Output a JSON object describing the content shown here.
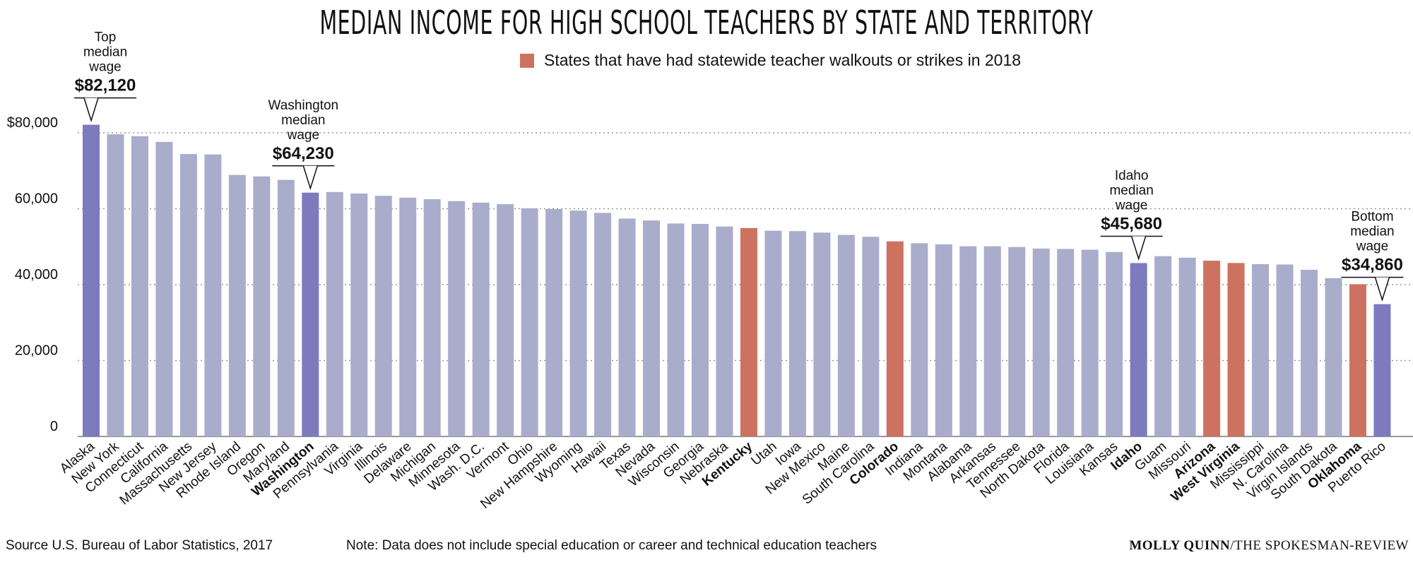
{
  "title": "MEDIAN INCOME FOR HIGH SCHOOL TEACHERS BY STATE AND TERRITORY",
  "legend": {
    "label": "States that have had statewide teacher walkouts or strikes in 2018",
    "color": "#cd7260"
  },
  "colors": {
    "default": "#aaaccb",
    "highlight": "#7d7bbd",
    "strike": "#cd7260",
    "axis": "#999999"
  },
  "footer": {
    "source": "Source U.S. Bureau of Labor Statistics, 2017",
    "note": "Note: Data does not include special education or career and technical education teachers",
    "credit_name": "MOLLY QUINN",
    "credit_org": "/THE SPOKESMAN-REVIEW"
  },
  "annotations": [
    {
      "category": "Alaska",
      "lines": [
        "Top",
        "median",
        "wage"
      ],
      "value": "$82,120"
    },
    {
      "category": "Washington",
      "lines": [
        "Washington",
        "median",
        "wage"
      ],
      "value": "$64,230"
    },
    {
      "category": "Idaho",
      "lines": [
        "Idaho",
        "median",
        "wage"
      ],
      "value": "$45,680"
    },
    {
      "category": "Puerto Rico",
      "lines": [
        "Bottom",
        "median",
        "wage"
      ],
      "value": "$34,860"
    }
  ],
  "chart_data": {
    "type": "bar",
    "ylim": [
      0,
      82120
    ],
    "yticks": [
      0,
      20000,
      40000,
      60000,
      80000
    ],
    "ytick_labels": [
      "0",
      "20,000",
      "40,000",
      "60,000",
      "$80,000"
    ],
    "grid": true,
    "legend_position": "top-center",
    "categories": [
      "Alaska",
      "New York",
      "Connecticut",
      "California",
      "Massachusetts",
      "New Jersey",
      "Rhode Island",
      "Oregon",
      "Maryland",
      "Washington",
      "Pennsylvania",
      "Virginia",
      "Illinois",
      "Delaware",
      "Michigan",
      "Minnesota",
      "Wash. D.C.",
      "Vermont",
      "Ohio",
      "New Hampshire",
      "Wyoming",
      "Hawaii",
      "Texas",
      "Nevada",
      "Wisconsin",
      "Georgia",
      "Nebraska",
      "Kentucky",
      "Utah",
      "Iowa",
      "New Mexico",
      "Maine",
      "South Carolina",
      "Colorado",
      "Indiana",
      "Montana",
      "Alabama",
      "Arkansas",
      "Tennessee",
      "North Dakota",
      "Florida",
      "Louisiana",
      "Kansas",
      "Idaho",
      "Guam",
      "Missouri",
      "Arizona",
      "West Virginia",
      "Mississippi",
      "N. Carolina",
      "Virgin Islands",
      "South Dakota",
      "Oklahoma",
      "Puerto Rico"
    ],
    "values": [
      82120,
      79600,
      79100,
      77600,
      74400,
      74300,
      68900,
      68500,
      67600,
      64230,
      64400,
      64000,
      63400,
      62900,
      62500,
      62000,
      61600,
      61200,
      60100,
      59900,
      59500,
      58900,
      57400,
      56900,
      56100,
      56000,
      55300,
      54900,
      54200,
      54100,
      53700,
      53100,
      52600,
      51400,
      50900,
      50600,
      50100,
      50100,
      49900,
      49500,
      49400,
      49200,
      48600,
      45680,
      47500,
      47100,
      46300,
      45700,
      45400,
      45300,
      43900,
      41700,
      40100,
      34860
    ],
    "groups": [
      "highlight",
      "default",
      "default",
      "default",
      "default",
      "default",
      "default",
      "default",
      "default",
      "highlight",
      "default",
      "default",
      "default",
      "default",
      "default",
      "default",
      "default",
      "default",
      "default",
      "default",
      "default",
      "default",
      "default",
      "default",
      "default",
      "default",
      "default",
      "strike",
      "default",
      "default",
      "default",
      "default",
      "default",
      "strike",
      "default",
      "default",
      "default",
      "default",
      "default",
      "default",
      "default",
      "default",
      "default",
      "highlight",
      "default",
      "default",
      "strike",
      "strike",
      "default",
      "default",
      "default",
      "default",
      "strike",
      "highlight"
    ],
    "bold_labels": [
      "Washington",
      "Kentucky",
      "Colorado",
      "Idaho",
      "Arizona",
      "West Virginia",
      "Oklahoma"
    ]
  }
}
